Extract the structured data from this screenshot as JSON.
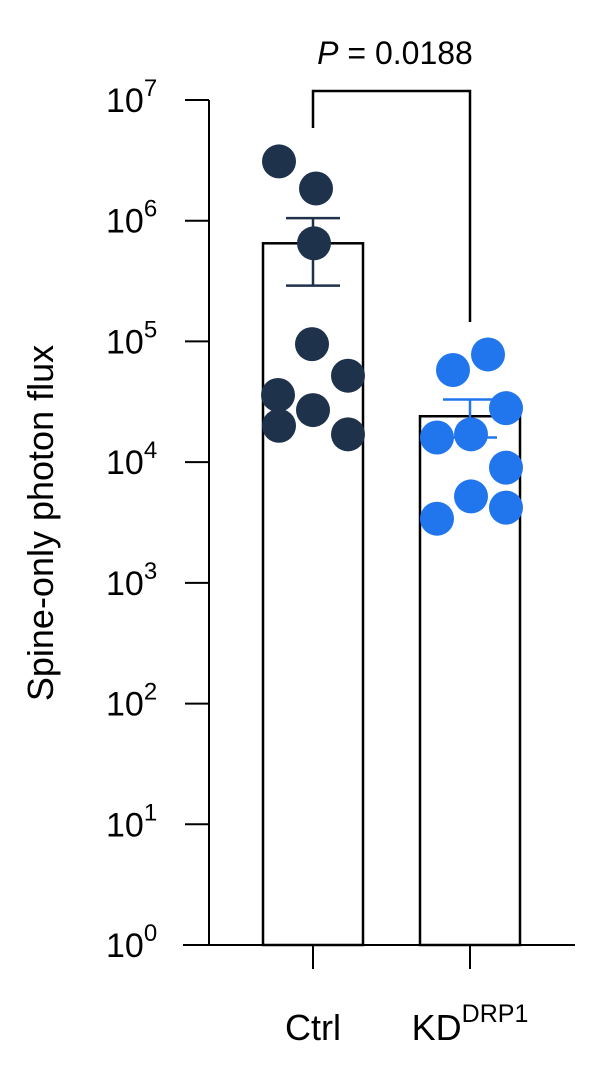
{
  "chart_data": {
    "type": "bar",
    "y_scale": "log",
    "ylim": [
      1,
      10000000
    ],
    "ylabel": "Spine-only photon flux",
    "yticks": [
      {
        "value": 1,
        "base": "10",
        "exp": "0"
      },
      {
        "value": 10,
        "base": "10",
        "exp": "1"
      },
      {
        "value": 100,
        "base": "10",
        "exp": "2"
      },
      {
        "value": 1000,
        "base": "10",
        "exp": "3"
      },
      {
        "value": 10000,
        "base": "10",
        "exp": "4"
      },
      {
        "value": 100000,
        "base": "10",
        "exp": "5"
      },
      {
        "value": 1000000,
        "base": "10",
        "exp": "6"
      },
      {
        "value": 10000000,
        "base": "10",
        "exp": "7"
      }
    ],
    "categories": [
      {
        "base": "Ctrl",
        "sup": ""
      },
      {
        "base": "KD",
        "sup": "DRP1"
      }
    ],
    "series": [
      {
        "category": "Ctrl",
        "color": "#1f324c",
        "mean": 650000,
        "error_upper": 1050000,
        "error_lower": 290000,
        "points": [
          3100000,
          1850000,
          650000,
          95000,
          52000,
          36000,
          27000,
          20000,
          17000
        ]
      },
      {
        "category": "KDDRP1",
        "color": "#2176ee",
        "mean": 24000,
        "error_upper": 33000,
        "error_lower": 16000,
        "points": [
          78000,
          58000,
          28000,
          17000,
          16000,
          9000,
          5200,
          4200,
          3400
        ]
      }
    ],
    "annotation": {
      "italic": "P",
      "text": " = 0.0188"
    },
    "grid": false,
    "legend": "none"
  }
}
